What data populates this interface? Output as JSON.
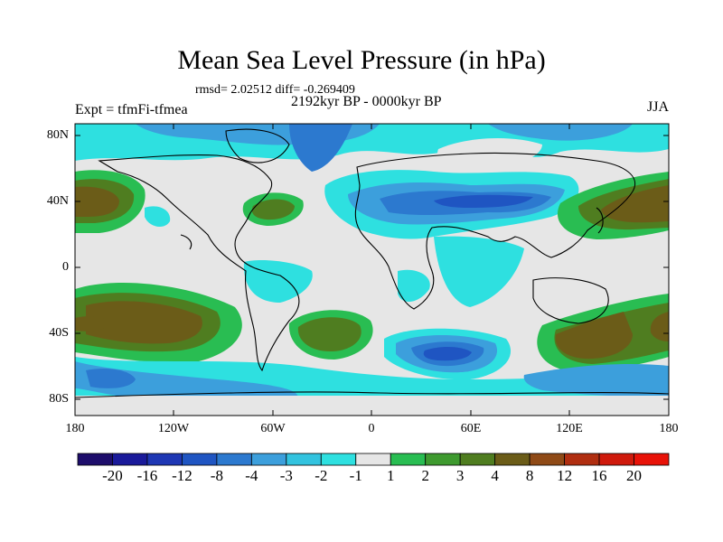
{
  "title": "Mean Sea Level Pressure (in hPa)",
  "stats": "rmsd= 2.02512 diff= -0.269409",
  "period": "2192kyr BP - 0000kyr BP",
  "experiment": "Expt = tfmFi-tfmea",
  "season": "JJA",
  "lat_labels": [
    "80N",
    "40N",
    "0",
    "40S",
    "80S"
  ],
  "lon_labels": [
    "180",
    "120W",
    "60W",
    "0",
    "60E",
    "120E",
    "180"
  ],
  "colorbar": {
    "labels": [
      "-20",
      "-16",
      "-12",
      "-8",
      "-4",
      "-3",
      "-2",
      "-1",
      "1",
      "2",
      "3",
      "4",
      "8",
      "12",
      "16",
      "20"
    ],
    "colors": [
      "#1d0d6b",
      "#1a1a9a",
      "#1e37b4",
      "#1f55c2",
      "#2c79cf",
      "#3c9fdc",
      "#32c3df",
      "#2ee0e0",
      "#e6e6e6",
      "#29bd52",
      "#3e9a2f",
      "#4f7d20",
      "#6b5c18",
      "#8f4a16",
      "#b02e10",
      "#cf1a0c",
      "#e81208"
    ]
  },
  "map_colors": {
    "land_outline": "#000000",
    "neutral": "#e6e6e6"
  }
}
